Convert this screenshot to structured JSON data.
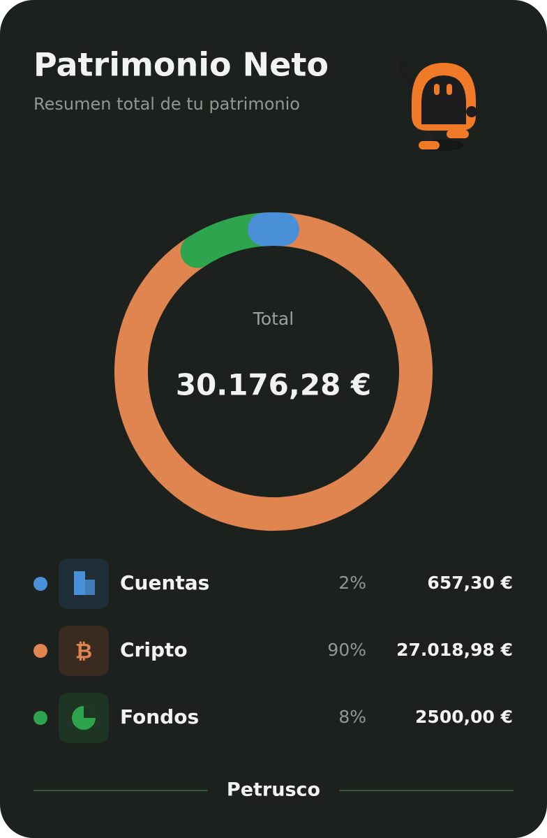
{
  "header": {
    "title": "Patrimonio Neto",
    "subtitle": "Resumen total de tu patrimonio"
  },
  "chart_data": {
    "type": "donut",
    "center_label": "Total",
    "total_label": "30.176,28 €",
    "categories": [
      "Cuentas",
      "Cripto",
      "Fondos"
    ],
    "values": [
      2,
      90,
      8
    ],
    "value_labels": [
      "2%",
      "90%",
      "8%"
    ],
    "amounts": [
      "657,30 €",
      "27.018,98 €",
      "2500,00 €"
    ],
    "colors": [
      "#4a90d9",
      "#e08550",
      "#2ea44f"
    ]
  },
  "footer": {
    "brand": "Petrusco"
  }
}
